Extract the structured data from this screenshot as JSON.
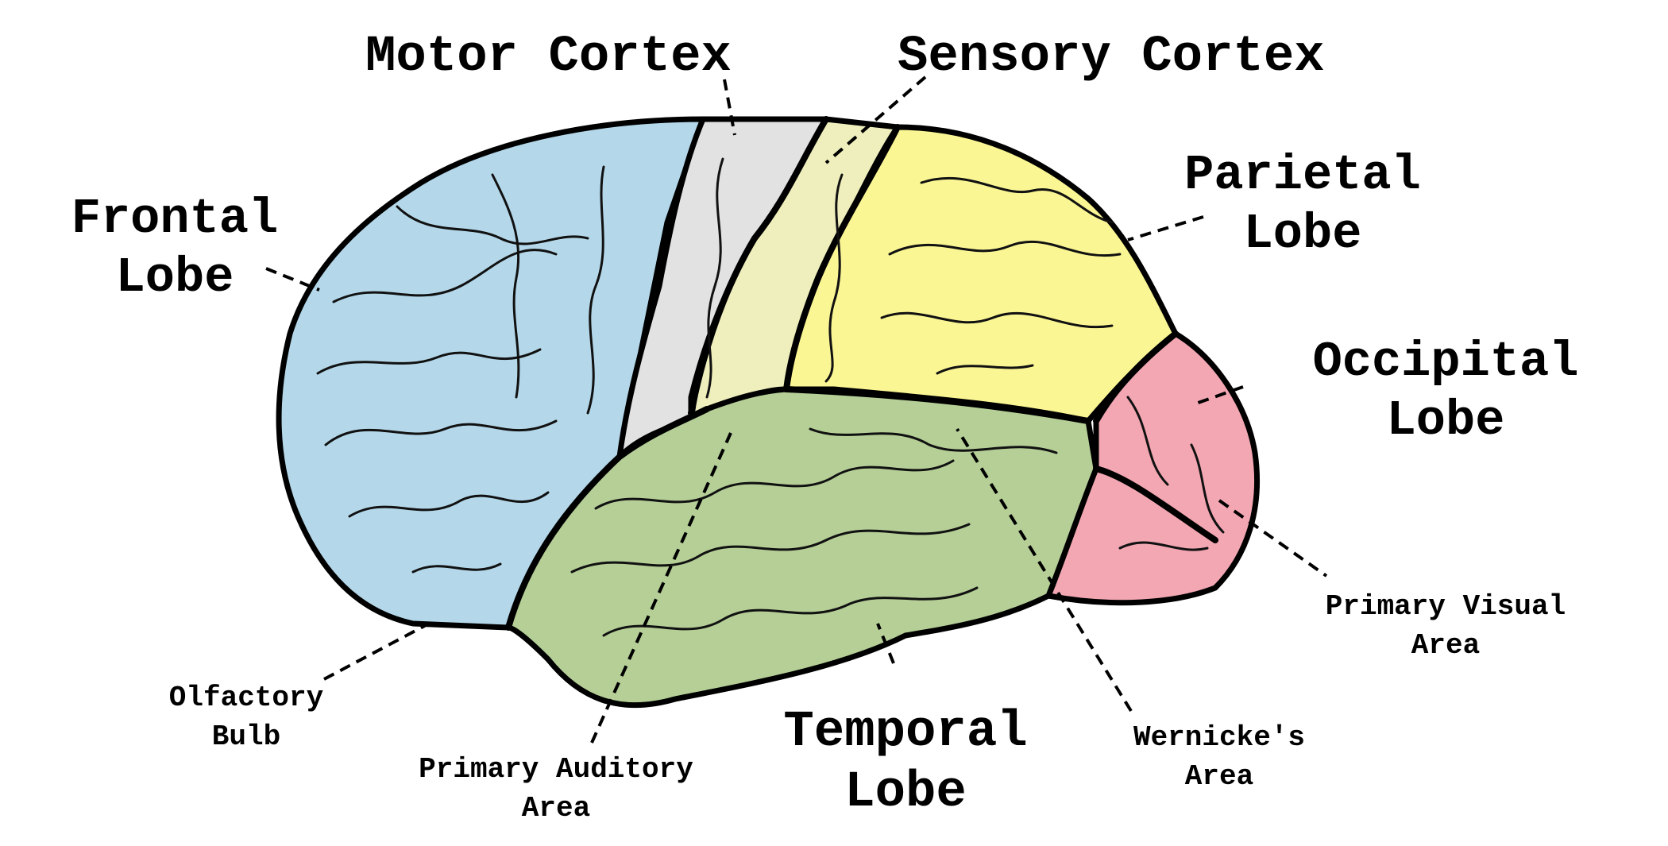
{
  "labels": {
    "motor_cortex": "Motor Cortex",
    "sensory_cortex": "Sensory Cortex",
    "frontal_lobe": [
      "Frontal",
      "Lobe"
    ],
    "parietal_lobe": [
      "Parietal",
      "Lobe"
    ],
    "occipital_lobe": [
      "Occipital",
      "Lobe"
    ],
    "temporal_lobe": [
      "Temporal",
      "Lobe"
    ],
    "olfactory_bulb": [
      "Olfactory",
      "Bulb"
    ],
    "primary_auditory_area": [
      "Primary Auditory",
      "Area"
    ],
    "wernickes_area": [
      "Wernicke's",
      "Area"
    ],
    "primary_visual_area": [
      "Primary Visual",
      "Area"
    ]
  },
  "colors": {
    "frontal": "#b4d8ea",
    "motor": "#e2e2e2",
    "sensory": "#efefbd",
    "parietal": "#fbf694",
    "temporal": "#b5cf97",
    "occipital": "#f2a7b3",
    "outline": "#000000"
  }
}
